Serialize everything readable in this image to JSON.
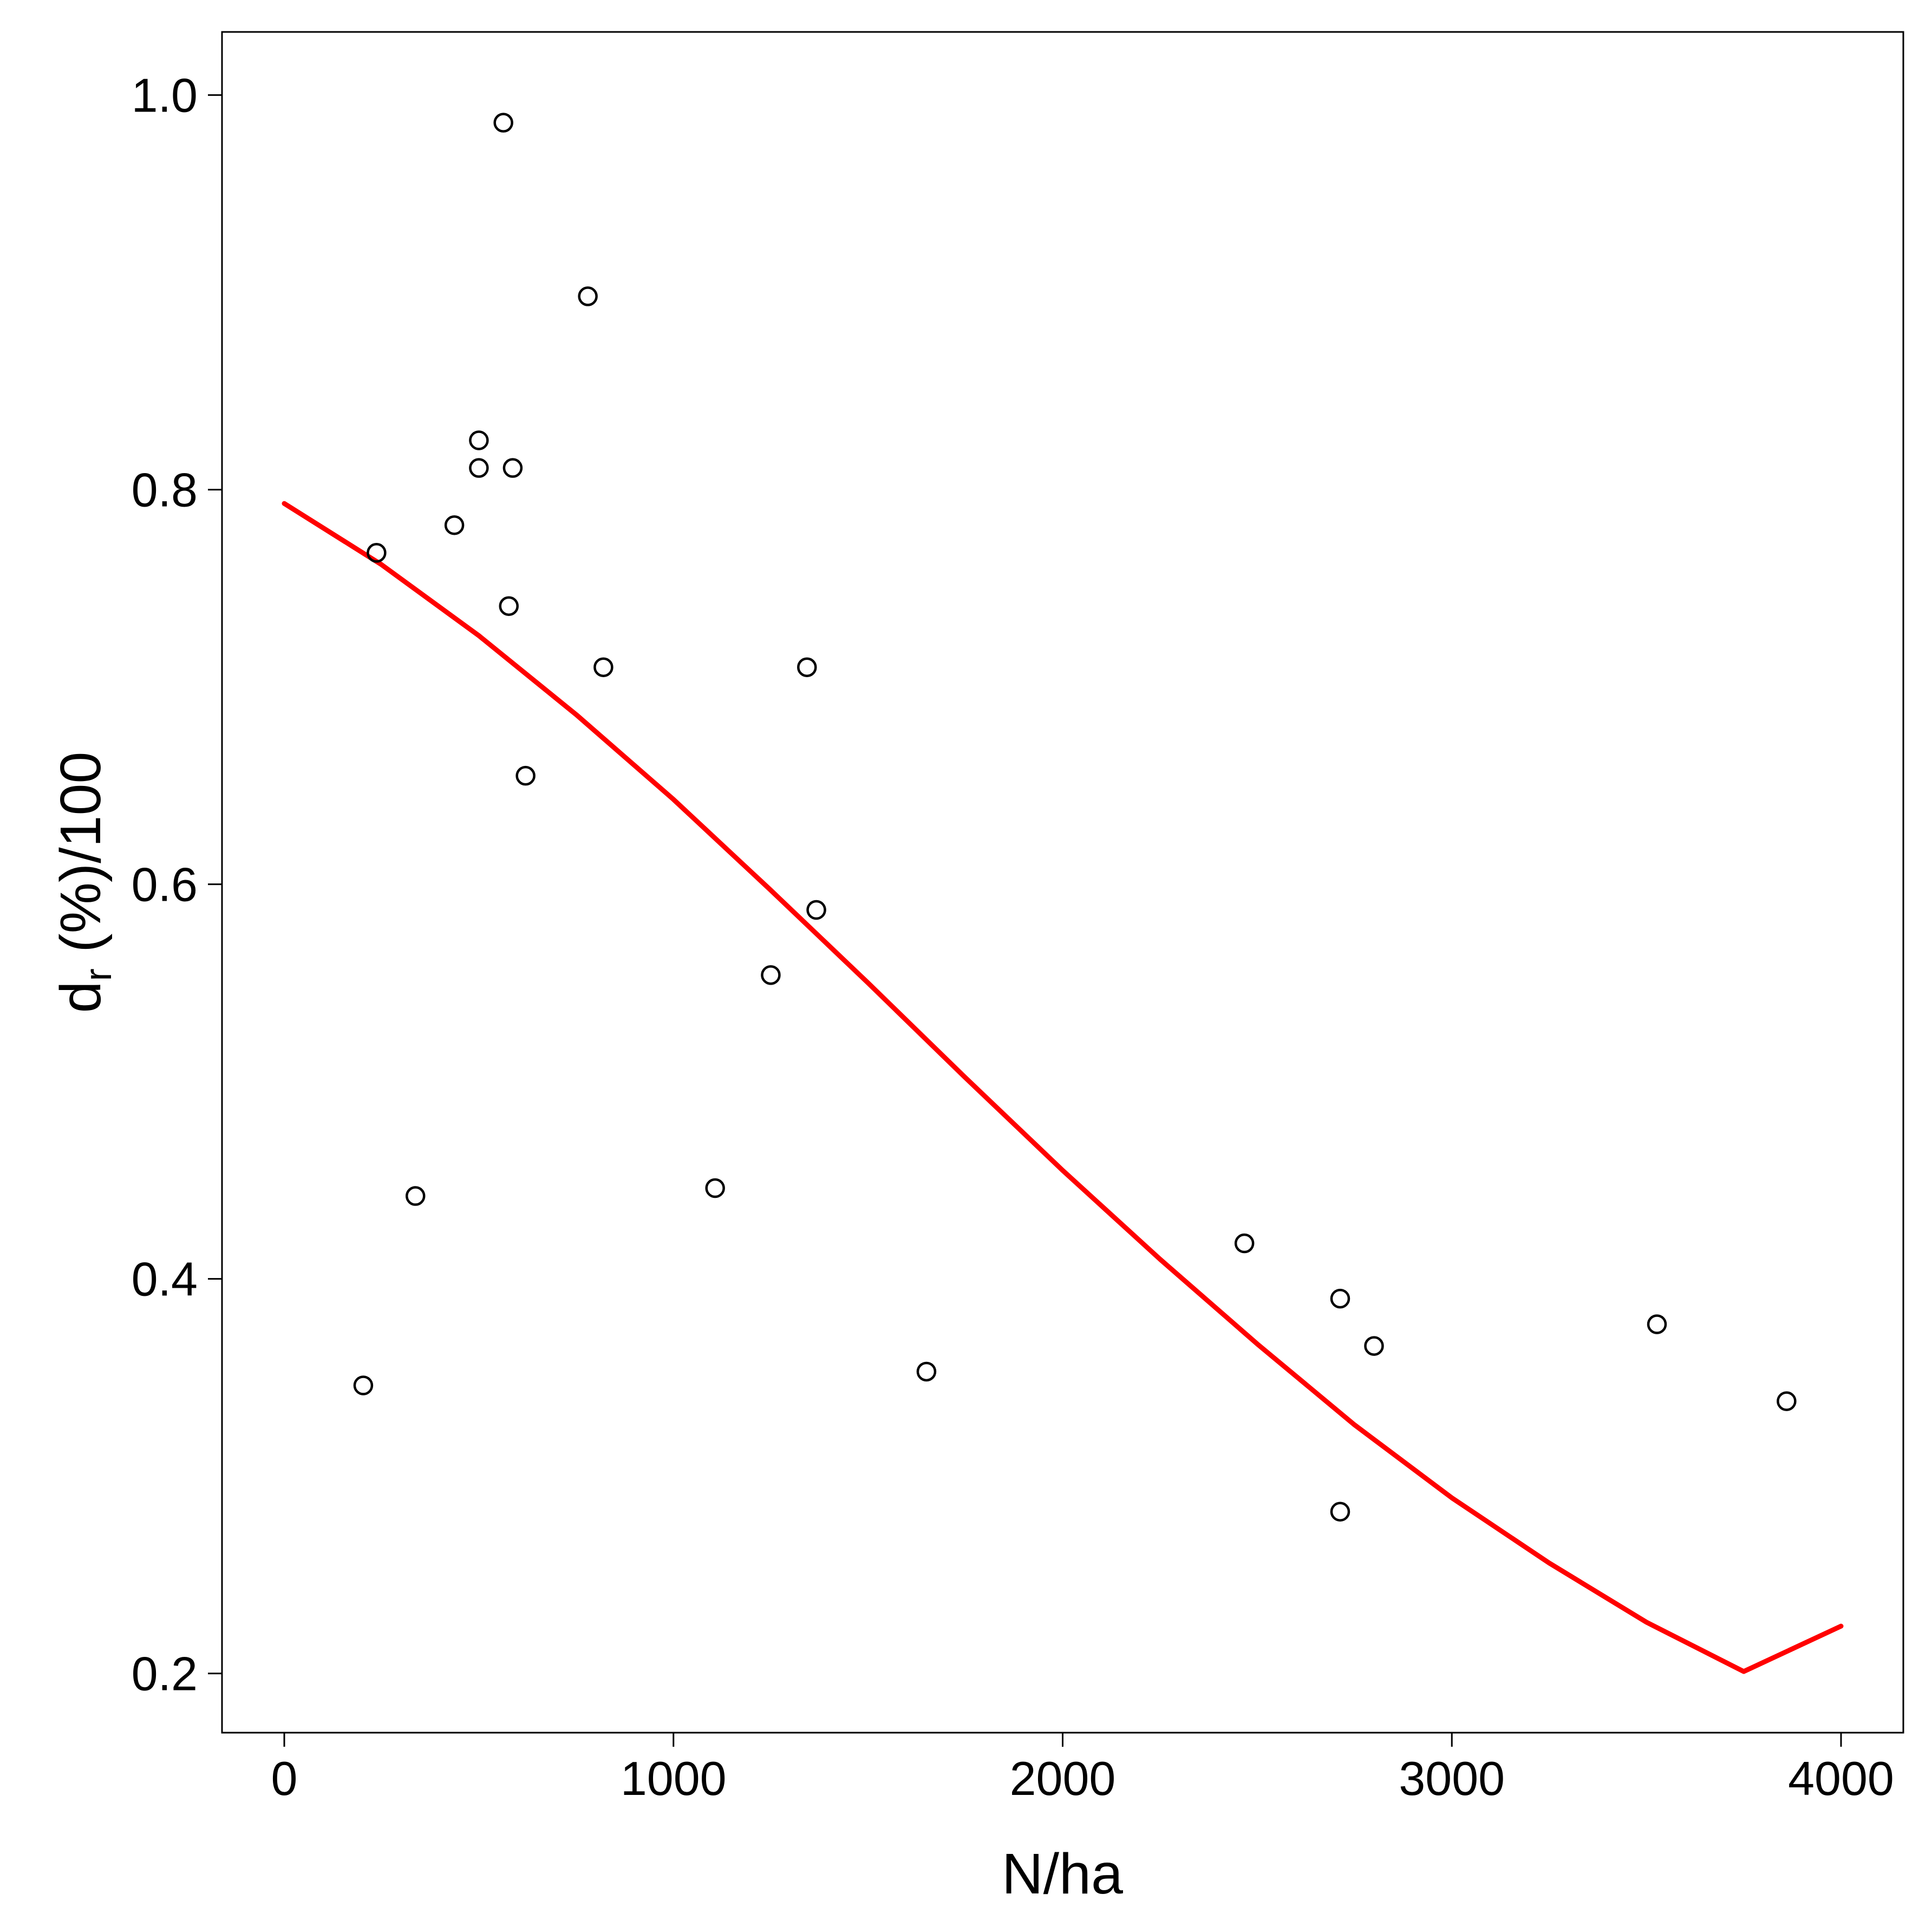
{
  "chart_data": {
    "type": "scatter",
    "title": "",
    "xlabel": "N/ha",
    "ylabel_main": "d",
    "ylabel_subscript": "r",
    "ylabel_rest": " (%)/100",
    "xlim": [
      -160,
      4160
    ],
    "ylim": [
      0.17,
      1.032
    ],
    "xticks": [
      0,
      1000,
      2000,
      3000,
      4000
    ],
    "xtick_labels": [
      "0",
      "1000",
      "2000",
      "3000",
      "4000"
    ],
    "yticks": [
      0.2,
      0.4,
      0.6,
      0.8,
      1.0
    ],
    "ytick_labels": [
      "0.2",
      "0.4",
      "0.6",
      "0.8",
      "1.0"
    ],
    "grid": false,
    "legend": "none",
    "series": [
      {
        "kind": "points",
        "marker": "open-circle",
        "color": "#000000",
        "x": [
          563,
          780,
          500,
          500,
          587,
          437,
          237,
          577,
          820,
          1343,
          620,
          1367,
          1250,
          337,
          1107,
          203,
          1650,
          2467,
          2713,
          2800,
          2713,
          3527,
          3860
        ],
        "y": [
          0.986,
          0.898,
          0.825,
          0.811,
          0.811,
          0.782,
          0.768,
          0.741,
          0.71,
          0.71,
          0.655,
          0.587,
          0.554,
          0.442,
          0.446,
          0.346,
          0.353,
          0.418,
          0.39,
          0.366,
          0.282,
          0.377,
          0.338
        ]
      },
      {
        "kind": "line",
        "color": "#ff0000",
        "x": [
          0,
          250,
          500,
          750,
          1000,
          1250,
          1500,
          1750,
          2000,
          2250,
          2500,
          2750,
          3000,
          3250,
          3500,
          3750,
          4000
        ],
        "y": [
          0.793,
          0.762,
          0.726,
          0.686,
          0.643,
          0.597,
          0.55,
          0.502,
          0.455,
          0.41,
          0.367,
          0.326,
          0.289,
          0.256,
          0.226,
          0.201,
          0.224
        ]
      }
    ]
  }
}
